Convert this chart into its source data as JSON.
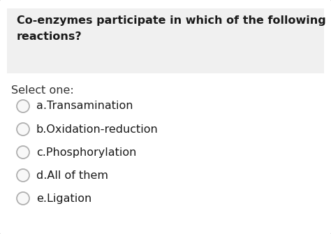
{
  "background_color": "#ffffff",
  "question_box_color": "#f0f0f0",
  "question_text": "Co-enzymes participate in which of the following\nreactions?",
  "select_label": "Select one:",
  "options_display": [
    "a.Transamination",
    "b.Oxidation-reduction",
    "c.Phosphorylation",
    "d.All of them",
    "e.Ligation"
  ],
  "text_color": "#1a1a1a",
  "select_color": "#333333",
  "radio_edge_color": "#b0b0b0",
  "radio_face_color": "#f8f8f8",
  "outer_border_color": "#d0d0d0",
  "qbox_border_color": "#dddddd",
  "question_fontsize": 11.5,
  "option_fontsize": 11.5,
  "select_fontsize": 11.5,
  "fig_width": 4.74,
  "fig_height": 3.35,
  "dpi": 100
}
